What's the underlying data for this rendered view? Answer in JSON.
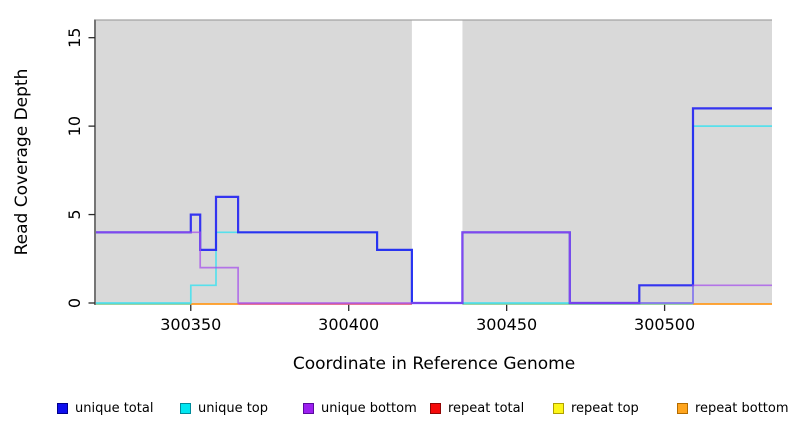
{
  "chart_data": {
    "type": "line",
    "subtype": "step",
    "xlabel": "Coordinate in Reference Genome",
    "ylabel": "Read Coverage Depth",
    "xlim": [
      300320,
      300534
    ],
    "ylim": [
      0,
      16
    ],
    "xticks": [
      300350,
      300400,
      300450,
      300500
    ],
    "yticks": [
      0,
      5,
      10,
      15
    ],
    "grid": false,
    "legend_position": "bottom",
    "plot_background": "#d9d9d9",
    "no_data_region": {
      "x0": 300420,
      "x1": 300436,
      "color": "#ffffff"
    },
    "series": [
      {
        "name": "unique total",
        "legend_fill": "#0f0fee",
        "legend_border": "#00008b",
        "line_color": "#2121f2",
        "line_opacity": 0.9,
        "line_width": 2.2,
        "segments": [
          [
            [
              300320,
              4
            ],
            [
              300350,
              5
            ],
            [
              300353,
              3
            ],
            [
              300358,
              6
            ],
            [
              300365,
              4
            ],
            [
              300409,
              3
            ],
            [
              300420,
              0
            ],
            [
              300436,
              4
            ],
            [
              300470,
              0
            ],
            [
              300492,
              1
            ],
            [
              300509,
              11
            ],
            [
              300534,
              11
            ]
          ]
        ]
      },
      {
        "name": "unique top",
        "legend_fill": "#00e6f0",
        "legend_border": "#008b9a",
        "line_color": "#3fe0ee",
        "line_opacity": 0.85,
        "line_width": 1.7,
        "segments": [
          [
            [
              300320,
              0
            ],
            [
              300350,
              1
            ],
            [
              300358,
              4
            ],
            [
              300409,
              3
            ],
            [
              300420,
              0
            ],
            [
              300509,
              10
            ],
            [
              300534,
              10
            ]
          ]
        ]
      },
      {
        "name": "unique bottom",
        "legend_fill": "#9c1ff0",
        "legend_border": "#5a0a9e",
        "line_color": "#a44ceb",
        "line_opacity": 0.72,
        "line_width": 1.7,
        "segments": [
          [
            [
              300320,
              4
            ],
            [
              300353,
              2
            ],
            [
              300365,
              0
            ],
            [
              300436,
              4
            ],
            [
              300470,
              0
            ],
            [
              300509,
              1
            ],
            [
              300534,
              1
            ]
          ]
        ]
      },
      {
        "name": "repeat total",
        "legend_fill": "#f50a0a",
        "legend_border": "#8f0606",
        "line_color": "#e0608a",
        "line_opacity": 1,
        "line_width": 1.7,
        "segments": [
          [
            [
              300365,
              0
            ],
            [
              300420,
              0
            ]
          ]
        ]
      },
      {
        "name": "repeat top",
        "legend_fill": "#fdf618",
        "legend_border": "#b0a000",
        "line_color": "#8fcb96",
        "line_opacity": 1,
        "line_width": 1.7,
        "segments": [
          [
            [
              300320,
              0
            ],
            [
              300350,
              0
            ]
          ],
          [
            [
              300436,
              0
            ],
            [
              300509,
              0
            ]
          ]
        ]
      },
      {
        "name": "repeat bottom",
        "legend_fill": "#ffa51e",
        "legend_border": "#b36b00",
        "line_color": "#ff9a1e",
        "line_opacity": 1,
        "line_width": 1.7,
        "segments": [
          [
            [
              300350,
              0
            ],
            [
              300365,
              0
            ]
          ],
          [
            [
              300509,
              0
            ],
            [
              300534,
              0
            ]
          ]
        ]
      }
    ]
  }
}
